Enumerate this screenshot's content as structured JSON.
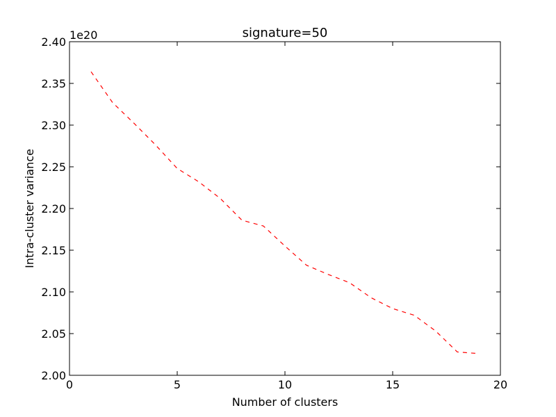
{
  "chart_data": {
    "type": "line",
    "title": "signature=50",
    "xlabel": "Number of clusters",
    "ylabel": "Intra-cluster variance",
    "y_offset_label": "1e20",
    "xlim": [
      0,
      20
    ],
    "ylim": [
      2.0,
      2.4
    ],
    "xticks": [
      0,
      5,
      10,
      15,
      20
    ],
    "xtick_labels": [
      "0",
      "5",
      "10",
      "15",
      "20"
    ],
    "yticks": [
      2.0,
      2.05,
      2.1,
      2.15,
      2.2,
      2.25,
      2.3,
      2.35,
      2.4
    ],
    "ytick_labels": [
      "2.00",
      "2.05",
      "2.10",
      "2.15",
      "2.20",
      "2.25",
      "2.30",
      "2.35",
      "2.40"
    ],
    "grid": false,
    "series": [
      {
        "color": "#ff0000",
        "linestyle": "dashed",
        "x": [
          1,
          2,
          3,
          4,
          5,
          6,
          7,
          8,
          9,
          10,
          11,
          12,
          13,
          14,
          15,
          16,
          17,
          18,
          19
        ],
        "y": [
          2.364,
          2.327,
          2.302,
          2.276,
          2.248,
          2.232,
          2.212,
          2.186,
          2.179,
          2.155,
          2.132,
          2.121,
          2.111,
          2.093,
          2.08,
          2.072,
          2.053,
          2.028,
          2.026
        ]
      }
    ]
  }
}
